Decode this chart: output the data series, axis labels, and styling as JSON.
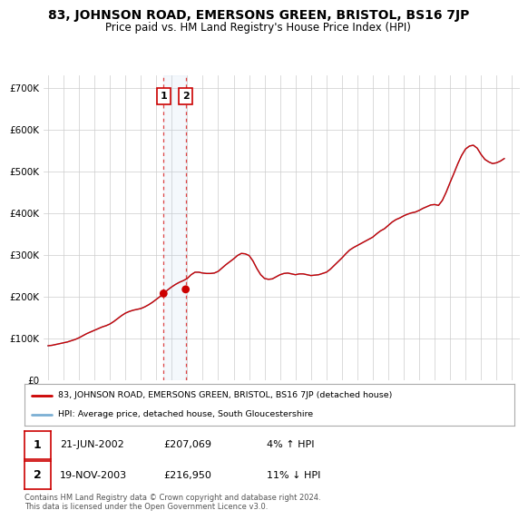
{
  "title": "83, JOHNSON ROAD, EMERSONS GREEN, BRISTOL, BS16 7JP",
  "subtitle": "Price paid vs. HM Land Registry's House Price Index (HPI)",
  "title_fontsize": 10,
  "subtitle_fontsize": 8.5,
  "ylabel_ticks": [
    "£0",
    "£100K",
    "£200K",
    "£300K",
    "£400K",
    "£500K",
    "£600K",
    "£700K"
  ],
  "ytick_vals": [
    0,
    100000,
    200000,
    300000,
    400000,
    500000,
    600000,
    700000
  ],
  "ylim": [
    0,
    730000
  ],
  "xlim_start": 1994.7,
  "xlim_end": 2025.5,
  "legend_line1": "83, JOHNSON ROAD, EMERSONS GREEN, BRISTOL, BS16 7JP (detached house)",
  "legend_line2": "HPI: Average price, detached house, South Gloucestershire",
  "line_color_red": "#cc0000",
  "line_color_blue": "#7bafd4",
  "annotation1_date": "21-JUN-2002",
  "annotation1_price": "£207,069",
  "annotation1_hpi": "4% ↑ HPI",
  "annotation2_date": "19-NOV-2003",
  "annotation2_price": "£216,950",
  "annotation2_hpi": "11% ↓ HPI",
  "footer": "Contains HM Land Registry data © Crown copyright and database right 2024.\nThis data is licensed under the Open Government Licence v3.0.",
  "background_color": "#ffffff",
  "grid_color": "#cccccc",
  "hpi_x": [
    1995.0,
    1995.25,
    1995.5,
    1995.75,
    1996.0,
    1996.25,
    1996.5,
    1996.75,
    1997.0,
    1997.25,
    1997.5,
    1997.75,
    1998.0,
    1998.25,
    1998.5,
    1998.75,
    1999.0,
    1999.25,
    1999.5,
    1999.75,
    2000.0,
    2000.25,
    2000.5,
    2000.75,
    2001.0,
    2001.25,
    2001.5,
    2001.75,
    2002.0,
    2002.25,
    2002.5,
    2002.75,
    2003.0,
    2003.25,
    2003.5,
    2003.75,
    2004.0,
    2004.25,
    2004.5,
    2004.75,
    2005.0,
    2005.25,
    2005.5,
    2005.75,
    2006.0,
    2006.25,
    2006.5,
    2006.75,
    2007.0,
    2007.25,
    2007.5,
    2007.75,
    2008.0,
    2008.25,
    2008.5,
    2008.75,
    2009.0,
    2009.25,
    2009.5,
    2009.75,
    2010.0,
    2010.25,
    2010.5,
    2010.75,
    2011.0,
    2011.25,
    2011.5,
    2011.75,
    2012.0,
    2012.25,
    2012.5,
    2012.75,
    2013.0,
    2013.25,
    2013.5,
    2013.75,
    2014.0,
    2014.25,
    2014.5,
    2014.75,
    2015.0,
    2015.25,
    2015.5,
    2015.75,
    2016.0,
    2016.25,
    2016.5,
    2016.75,
    2017.0,
    2017.25,
    2017.5,
    2017.75,
    2018.0,
    2018.25,
    2018.5,
    2018.75,
    2019.0,
    2019.25,
    2019.5,
    2019.75,
    2020.0,
    2020.25,
    2020.5,
    2020.75,
    2021.0,
    2021.25,
    2021.5,
    2021.75,
    2022.0,
    2022.25,
    2022.5,
    2022.75,
    2023.0,
    2023.25,
    2023.5,
    2023.75,
    2024.0,
    2024.25,
    2024.5
  ],
  "hpi_y": [
    82000,
    83000,
    85000,
    87000,
    89000,
    91000,
    94000,
    97000,
    101000,
    106000,
    111000,
    115000,
    119000,
    123000,
    127000,
    130000,
    134000,
    140000,
    147000,
    154000,
    160000,
    164000,
    167000,
    169000,
    171000,
    175000,
    180000,
    186000,
    193000,
    200000,
    208000,
    216000,
    223000,
    229000,
    234000,
    238000,
    243000,
    252000,
    258000,
    258000,
    256000,
    255000,
    255000,
    256000,
    260000,
    268000,
    276000,
    283000,
    290000,
    298000,
    303000,
    302000,
    298000,
    285000,
    267000,
    252000,
    243000,
    241000,
    242000,
    247000,
    252000,
    255000,
    256000,
    254000,
    252000,
    254000,
    254000,
    252000,
    250000,
    251000,
    252000,
    255000,
    258000,
    265000,
    274000,
    283000,
    292000,
    302000,
    311000,
    317000,
    322000,
    327000,
    332000,
    337000,
    342000,
    350000,
    357000,
    362000,
    370000,
    378000,
    384000,
    388000,
    393000,
    397000,
    400000,
    402000,
    406000,
    411000,
    415000,
    419000,
    420000,
    418000,
    430000,
    450000,
    473000,
    495000,
    518000,
    538000,
    553000,
    560000,
    562000,
    555000,
    540000,
    528000,
    522000,
    518000,
    520000,
    524000,
    530000
  ],
  "sale1_x": 2002.47,
  "sale1_y": 207069,
  "sale1_hpi": 204000,
  "sale2_x": 2003.9,
  "sale2_y": 216950,
  "sale2_hpi": 237000,
  "dashed_x1": 2002.47,
  "dashed_x2": 2003.9
}
